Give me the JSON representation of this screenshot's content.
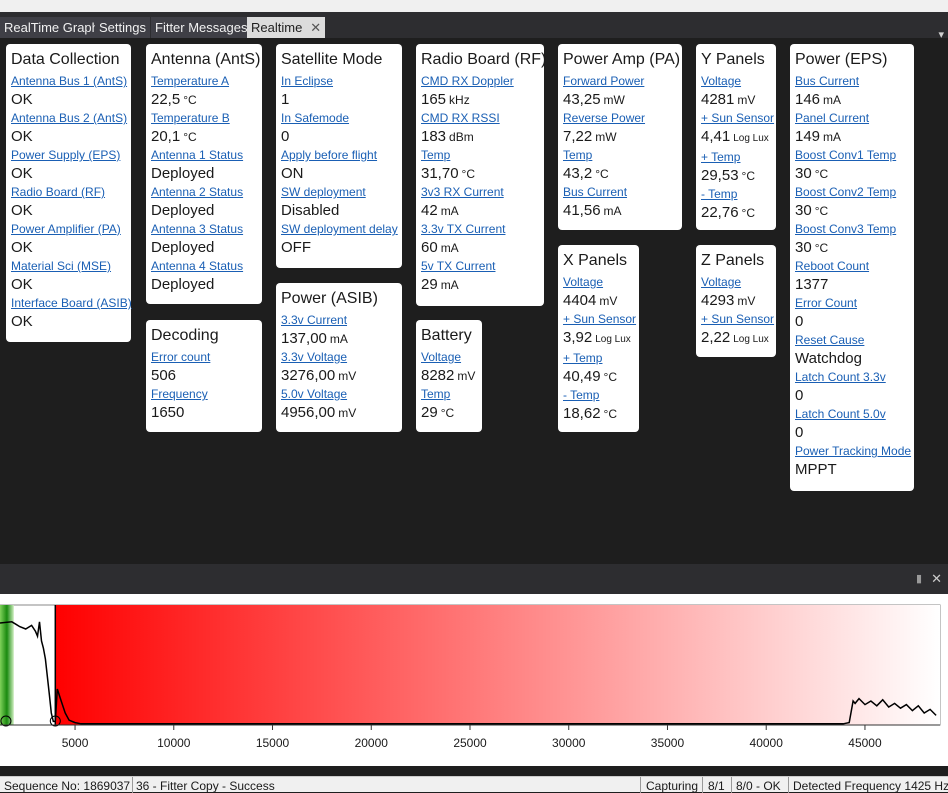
{
  "tabs": [
    {
      "label": "RealTime Graph"
    },
    {
      "label": "Settings"
    },
    {
      "label": "Fitter Messages"
    },
    {
      "label": "Realtime"
    }
  ],
  "cards": {
    "data_collection": {
      "title": "Data Collection",
      "fields": [
        {
          "label": "Antenna Bus 1 (AntS)",
          "value": "OK"
        },
        {
          "label": "Antenna Bus 2 (AntS)",
          "value": "OK"
        },
        {
          "label": "Power Supply (EPS)",
          "value": "OK"
        },
        {
          "label": "Radio Board (RF)",
          "value": "OK"
        },
        {
          "label": "Power Amplifier (PA)",
          "value": "OK"
        },
        {
          "label": "Material Sci (MSE)",
          "value": "OK"
        },
        {
          "label": "Interface Board (ASIB)",
          "value": "OK"
        }
      ]
    },
    "antenna": {
      "title": "Antenna (AntS)",
      "fields": [
        {
          "label": "Temperature A",
          "value": "22,5",
          "unit": "°C"
        },
        {
          "label": "Temperature B",
          "value": "20,1",
          "unit": "°C"
        },
        {
          "label": "Antenna 1 Status",
          "value": "Deployed"
        },
        {
          "label": "Antenna 2 Status",
          "value": "Deployed"
        },
        {
          "label": "Antenna 3 Status",
          "value": "Deployed"
        },
        {
          "label": "Antenna 4 Status",
          "value": "Deployed"
        }
      ]
    },
    "decoding": {
      "title": "Decoding",
      "fields": [
        {
          "label": "Error count",
          "value": "506"
        },
        {
          "label": "Frequency",
          "value": "1650"
        }
      ]
    },
    "satellite_mode": {
      "title": "Satellite Mode",
      "fields": [
        {
          "label": "In Eclipse",
          "value": "1"
        },
        {
          "label": "In Safemode",
          "value": "0"
        },
        {
          "label": "Apply before flight",
          "value": "ON"
        },
        {
          "label": "SW deployment",
          "value": "Disabled"
        },
        {
          "label": "SW deployment delay",
          "value": "OFF"
        }
      ]
    },
    "power_asib": {
      "title": "Power (ASIB)",
      "fields": [
        {
          "label": "3.3v Current",
          "value": "137,00",
          "unit": "mA"
        },
        {
          "label": "3.3v Voltage",
          "value": "3276,00",
          "unit": "mV"
        },
        {
          "label": "5.0v Voltage",
          "value": "4956,00",
          "unit": "mV"
        }
      ]
    },
    "radio_board": {
      "title": "Radio Board (RF)",
      "fields": [
        {
          "label": "CMD RX Doppler",
          "value": "165",
          "unit": "kHz"
        },
        {
          "label": "CMD RX RSSI",
          "value": "183",
          "unit": "dBm"
        },
        {
          "label": "Temp",
          "value": "31,70",
          "unit": "°C"
        },
        {
          "label": "3v3 RX Current",
          "value": "42",
          "unit": "mA"
        },
        {
          "label": "3.3v TX Current",
          "value": "60",
          "unit": "mA"
        },
        {
          "label": "5v TX Current",
          "value": "29",
          "unit": "mA"
        }
      ]
    },
    "battery": {
      "title": "Battery",
      "fields": [
        {
          "label": "Voltage",
          "value": "8282",
          "unit": "mV"
        },
        {
          "label": "Temp",
          "value": "29",
          "unit": "°C"
        }
      ]
    },
    "power_amp": {
      "title": "Power Amp (PA)",
      "fields": [
        {
          "label": "Forward Power",
          "value": "43,25",
          "unit": "mW"
        },
        {
          "label": "Reverse Power",
          "value": "7,22",
          "unit": "mW"
        },
        {
          "label": "Temp",
          "value": "43,2",
          "unit": "°C"
        },
        {
          "label": "Bus Current",
          "value": "41,56",
          "unit": "mA"
        }
      ]
    },
    "x_panels": {
      "title": "X Panels",
      "fields": [
        {
          "label": "Voltage",
          "value": "4404",
          "unit": "mV"
        },
        {
          "label": "+ Sun Sensor",
          "value": "3,92",
          "unit": "Log Lux",
          "small": true
        },
        {
          "label": "+ Temp",
          "value": "40,49",
          "unit": "°C"
        },
        {
          "label": "- Temp",
          "value": "18,62",
          "unit": "°C"
        }
      ]
    },
    "y_panels": {
      "title": "Y Panels",
      "fields": [
        {
          "label": "Voltage",
          "value": "4281",
          "unit": "mV"
        },
        {
          "label": "+ Sun Sensor",
          "value": "4,41",
          "unit": "Log Lux",
          "small": true
        },
        {
          "label": "+ Temp",
          "value": "29,53",
          "unit": "°C"
        },
        {
          "label": "- Temp",
          "value": "22,76",
          "unit": "°C"
        }
      ]
    },
    "z_panels": {
      "title": "Z Panels",
      "fields": [
        {
          "label": "Voltage",
          "value": "4293",
          "unit": "mV"
        },
        {
          "label": "+ Sun Sensor",
          "value": "2,22",
          "unit": "Log Lux",
          "small": true
        }
      ]
    },
    "power_eps": {
      "title": "Power (EPS)",
      "fields": [
        {
          "label": "Bus Current",
          "value": "146",
          "unit": "mA"
        },
        {
          "label": "Panel Current",
          "value": "149",
          "unit": "mA"
        },
        {
          "label": "Boost Conv1 Temp",
          "value": "30",
          "unit": "°C"
        },
        {
          "label": "Boost Conv2 Temp",
          "value": "30",
          "unit": "°C"
        },
        {
          "label": "Boost Conv3 Temp",
          "value": "30",
          "unit": "°C"
        },
        {
          "label": "Reboot Count",
          "value": "1377"
        },
        {
          "label": "Error Count",
          "value": "0"
        },
        {
          "label": "Reset Cause",
          "value": "Watchdog"
        },
        {
          "label": "Latch Count 3.3v",
          "value": "0"
        },
        {
          "label": "Latch Count 5.0v",
          "value": "0"
        },
        {
          "label": "Power Tracking Mode",
          "value": "MPPT"
        }
      ]
    }
  },
  "spectrum": {
    "x_ticks": [
      "5000",
      "10000",
      "15000",
      "20000",
      "25000",
      "30000",
      "35000",
      "40000",
      "45000"
    ],
    "x_tick_values": [
      5000,
      10000,
      15000,
      20000,
      25000,
      30000,
      35000,
      40000,
      45000
    ],
    "x_range": [
      1200,
      48800
    ],
    "y_range": [
      0,
      1
    ],
    "signal_band_hz": [
      1200,
      1900
    ],
    "filter_band_hz": [
      4000,
      48800
    ],
    "markers_hz": [
      1500,
      4000
    ],
    "trace_x": [
      1200,
      1800,
      2000,
      2200,
      2500,
      2800,
      3000,
      3100,
      3200,
      3300,
      3400,
      3500,
      3600,
      3700,
      3800,
      3900,
      4000,
      4100,
      4300,
      4500,
      4700,
      5000,
      5300,
      6000,
      10000,
      20000,
      30000,
      40000,
      43900,
      44200,
      44400,
      44500,
      44700,
      45000,
      45300,
      45600,
      45900,
      46200,
      46500,
      46800,
      47100,
      47400,
      47700,
      48000,
      48300,
      48600
    ],
    "trace_y": [
      0.85,
      0.86,
      0.84,
      0.82,
      0.8,
      0.83,
      0.78,
      0.74,
      0.86,
      0.7,
      0.64,
      0.55,
      0.4,
      0.25,
      0.1,
      0.03,
      0.03,
      0.3,
      0.2,
      0.1,
      0.04,
      0.02,
      0.01,
      0.01,
      0.01,
      0.01,
      0.01,
      0.01,
      0.01,
      0.02,
      0.2,
      0.18,
      0.22,
      0.17,
      0.2,
      0.16,
      0.21,
      0.15,
      0.18,
      0.14,
      0.17,
      0.12,
      0.16,
      0.1,
      0.13,
      0.08
    ],
    "colors": {
      "signal": "#2e9a1a",
      "filter": "#ff0000",
      "trace": "#000000"
    }
  },
  "status": {
    "sequence": "Sequence No:  1869037",
    "message": "36 - Fitter Copy - Success",
    "capturing": "Capturing",
    "ratio": "8/1",
    "ok": "8/0 - OK",
    "detected": "Detected Frequency  1425 Hz"
  }
}
